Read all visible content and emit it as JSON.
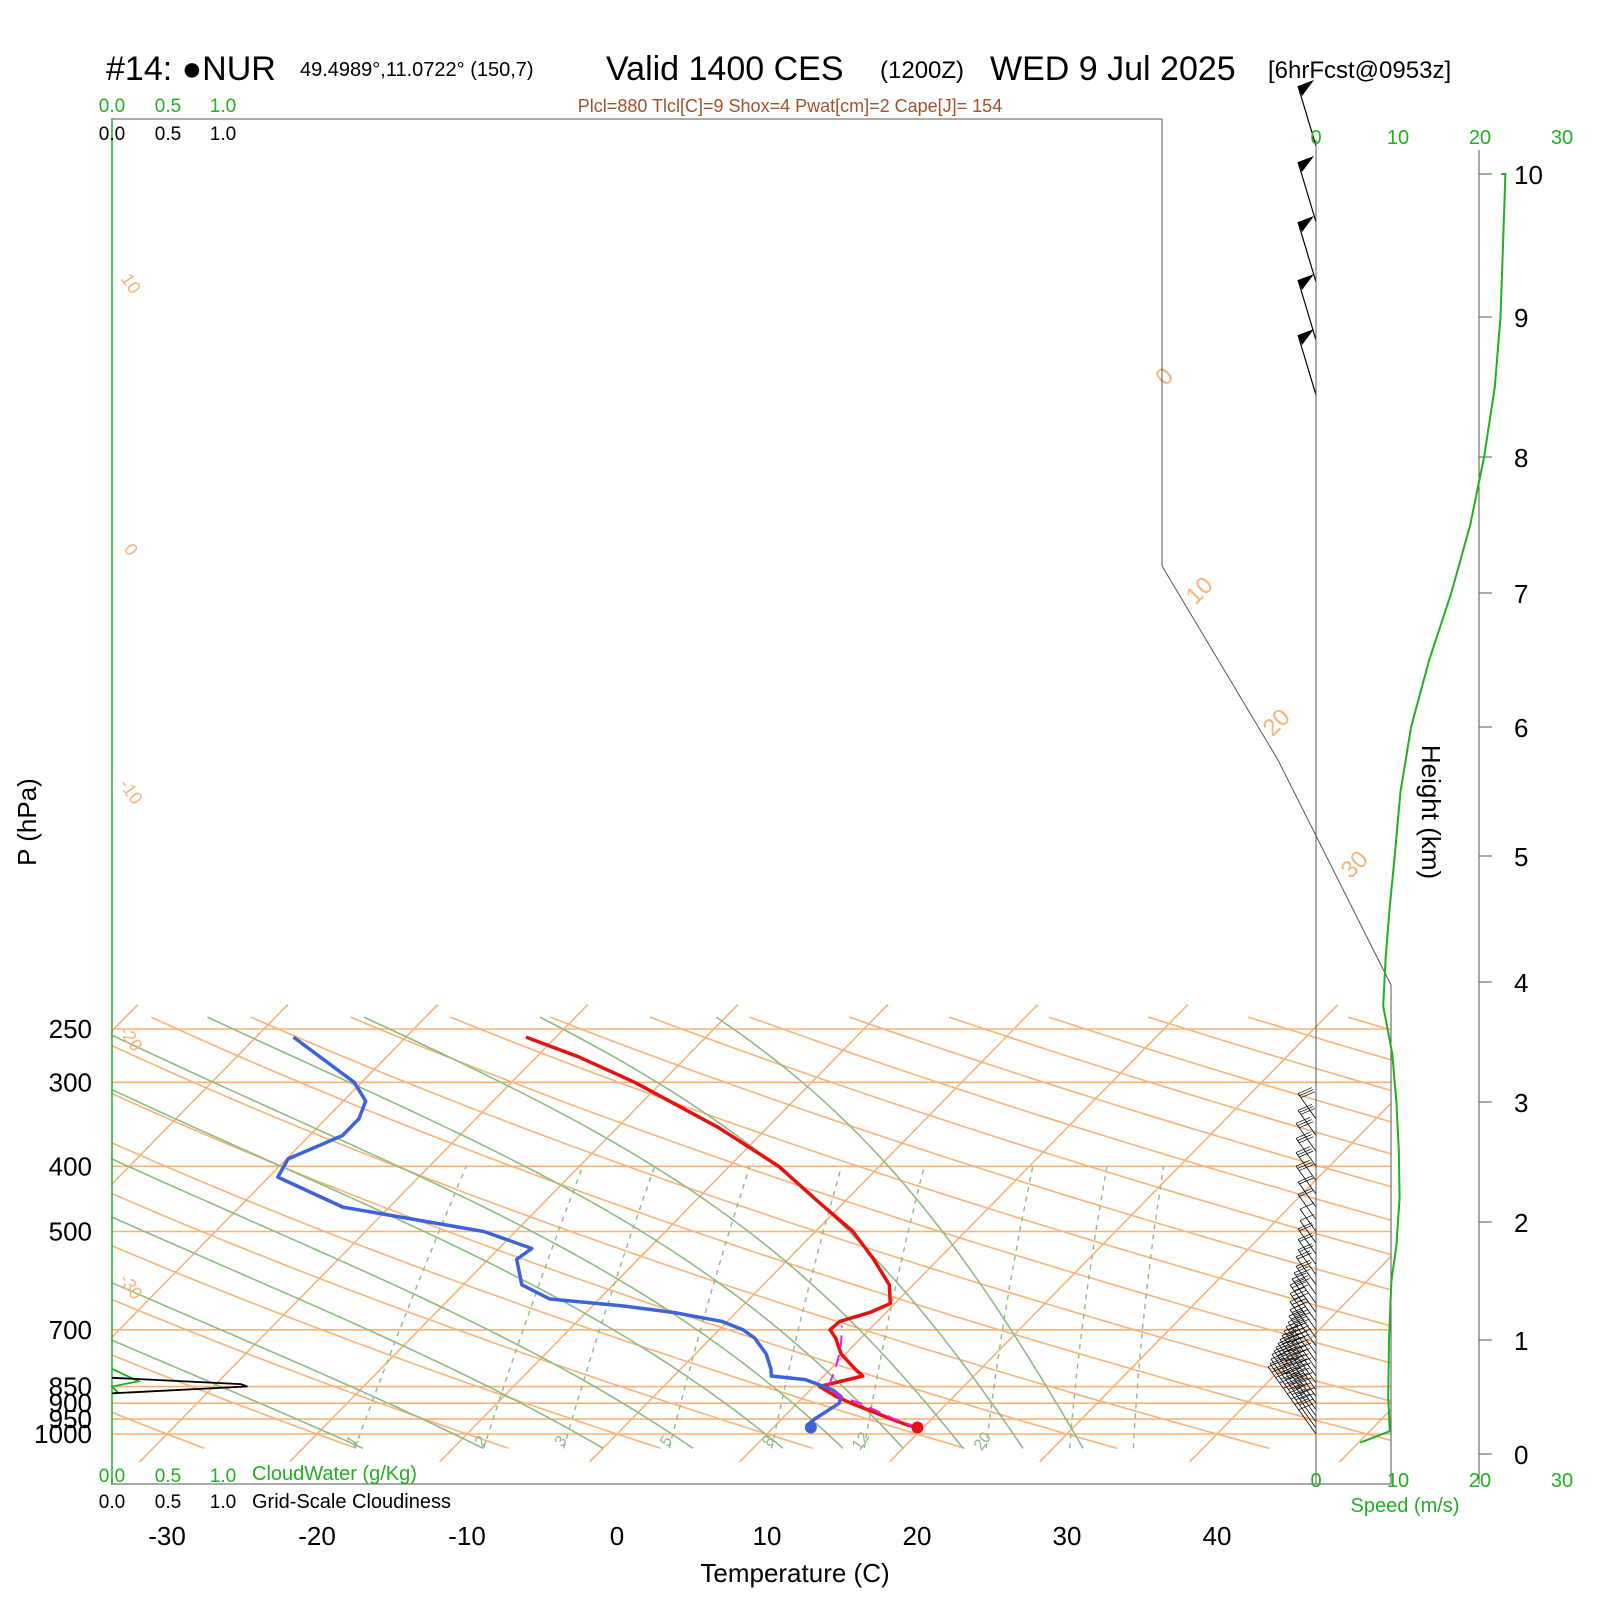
{
  "header": {
    "station": "#14: ●NUR",
    "coords": "49.4989°,11.0722° (150,7)",
    "valid": "Valid 1400 CES",
    "zulu": "(1200Z)",
    "date": "WED 9 Jul 2025",
    "forecast": "[6hrFcst@0953z]",
    "indices": "Plcl=880 Tlcl[C]=9 Shox=4 Pwat[cm]=2 Cape[J]= 154"
  },
  "colors": {
    "isotherm": "#f8b37a",
    "dry_adiabat": "#8fbb84",
    "moist_adiabat": "#8fbb84",
    "mixing_ratio": "#8fbb84",
    "temperature": "#e8110f",
    "dewpoint": "#3d63d8",
    "parcel": "#e020e8",
    "speed": "#20b020",
    "cloudwater": "#20b020",
    "cloudiness": "#000000",
    "indices": "#a0522d"
  },
  "chart_data": {
    "type": "line",
    "title": "Valid 1400 CES (1200Z) WED 9 Jul 2025",
    "xlabel": "Temperature (C)",
    "ylabel": "P (hPa)",
    "y2label": "Height (km)",
    "log_pressure_axis": true,
    "skewed_temperature_axis": true,
    "xlim": [
      -35,
      45
    ],
    "ylim_hpa": [
      1050,
      250
    ],
    "x_ticks": [
      "-30",
      "-20",
      "-10",
      "0",
      "10",
      "20",
      "30",
      "40"
    ],
    "pressure_ticks": [
      "250",
      "300",
      "400",
      "500",
      "700",
      "850",
      "900",
      "950",
      "1000"
    ],
    "height_ticks": [
      "0",
      "1",
      "2",
      "3",
      "4",
      "5",
      "6",
      "7",
      "8",
      "9",
      "10"
    ],
    "isotherm_labels": [
      "10",
      "0",
      "-10",
      "-20",
      "-30",
      "0",
      "10",
      "20",
      "30"
    ],
    "mixing_ratio_labels": [
      "1",
      "2",
      "3",
      "5",
      "8",
      "12",
      "20"
    ],
    "series": [
      {
        "name": "Temperature",
        "points": [
          [
            978,
            19.6
          ],
          [
            970,
            18.8
          ],
          [
            950,
            17.3
          ],
          [
            900,
            13.6
          ],
          [
            880,
            12.2
          ],
          [
            850,
            10.4
          ],
          [
            820,
            12.6
          ],
          [
            800,
            11.6
          ],
          [
            760,
            9.7
          ],
          [
            720,
            8.3
          ],
          [
            700,
            7.4
          ],
          [
            680,
            7.5
          ],
          [
            660,
            8.9
          ],
          [
            640,
            9.7
          ],
          [
            600,
            8.4
          ],
          [
            550,
            5.7
          ],
          [
            500,
            2.5
          ],
          [
            450,
            -1.9
          ],
          [
            400,
            -6.7
          ],
          [
            350,
            -13.3
          ],
          [
            300,
            -21.8
          ],
          [
            275,
            -27.2
          ],
          [
            257,
            -32.0
          ]
        ]
      },
      {
        "name": "Dewpoint",
        "points": [
          [
            978,
            12.5
          ],
          [
            970,
            12.1
          ],
          [
            950,
            12.2
          ],
          [
            900,
            12.8
          ],
          [
            880,
            12.5
          ],
          [
            860,
            11.5
          ],
          [
            850,
            10.7
          ],
          [
            830,
            9.0
          ],
          [
            820,
            6.5
          ],
          [
            800,
            6.0
          ],
          [
            760,
            4.7
          ],
          [
            720,
            2.9
          ],
          [
            700,
            1.6
          ],
          [
            680,
            -0.4
          ],
          [
            660,
            -4.1
          ],
          [
            645,
            -8.0
          ],
          [
            630,
            -13.3
          ],
          [
            600,
            -16.1
          ],
          [
            550,
            -18.1
          ],
          [
            530,
            -17.8
          ],
          [
            500,
            -22.1
          ],
          [
            460,
            -33.1
          ],
          [
            415,
            -39.4
          ],
          [
            390,
            -39.9
          ],
          [
            360,
            -37.8
          ],
          [
            340,
            -37.8
          ],
          [
            320,
            -38.5
          ],
          [
            300,
            -40.5
          ],
          [
            257,
            -47.5
          ]
        ]
      },
      {
        "name": "Parcel",
        "points": [
          [
            978,
            19.6
          ],
          [
            950,
            17.5
          ],
          [
            900,
            14.2
          ],
          [
            880,
            12.4
          ],
          [
            850,
            11.0
          ],
          [
            800,
            10.3
          ],
          [
            750,
            9.4
          ],
          [
            700,
            8.2
          ],
          [
            690,
            7.9
          ]
        ]
      },
      {
        "name": "Wind speed (m/s)",
        "points": [
          [
            0.1,
            5.4
          ],
          [
            0.2,
            9.0
          ],
          [
            0.5,
            8.8
          ],
          [
            1.0,
            8.9
          ],
          [
            1.5,
            9.2
          ],
          [
            1.8,
            9.8
          ],
          [
            2.2,
            10.2
          ],
          [
            2.6,
            10.1
          ],
          [
            3.0,
            9.8
          ],
          [
            3.4,
            9.3
          ],
          [
            3.8,
            8.2
          ],
          [
            4.2,
            8.5
          ],
          [
            4.6,
            9.0
          ],
          [
            5.0,
            9.6
          ],
          [
            5.5,
            10.3
          ],
          [
            6.0,
            11.6
          ],
          [
            6.5,
            13.8
          ],
          [
            7.0,
            16.5
          ],
          [
            7.5,
            18.8
          ],
          [
            8.0,
            20.5
          ],
          [
            8.5,
            21.8
          ],
          [
            9.0,
            22.5
          ],
          [
            9.5,
            22.8
          ],
          [
            10.0,
            23.1
          ],
          [
            10.5,
            22.6
          ]
        ]
      },
      {
        "name": "CloudWater (g/Kg)",
        "points": [
          [
            870,
            0.06
          ],
          [
            850,
            0.0
          ],
          [
            835,
            0.24
          ],
          [
            800,
            0.0
          ]
        ]
      },
      {
        "name": "Grid-Scale Cloudiness",
        "points": [
          [
            870,
            0.0
          ],
          [
            850,
            1.22
          ],
          [
            843,
            1.16
          ],
          [
            825,
            0.0
          ]
        ]
      }
    ]
  },
  "labels": {
    "scale_top_green": [
      "0.0",
      "0.5",
      "1.0"
    ],
    "scale_top_black": [
      "0.0",
      "0.5",
      "1.0"
    ],
    "scale_bottom_green": [
      "0.0",
      "0.5",
      "1.0"
    ],
    "scale_bottom_black": [
      "0.0",
      "0.5",
      "1.0"
    ],
    "cloudwater_label": "CloudWater (g/Kg)",
    "cloudiness_label": "Grid-Scale Cloudiness",
    "speed_ticks": [
      "0",
      "10",
      "20",
      "30"
    ],
    "speed_label": "Speed (m/s)"
  }
}
